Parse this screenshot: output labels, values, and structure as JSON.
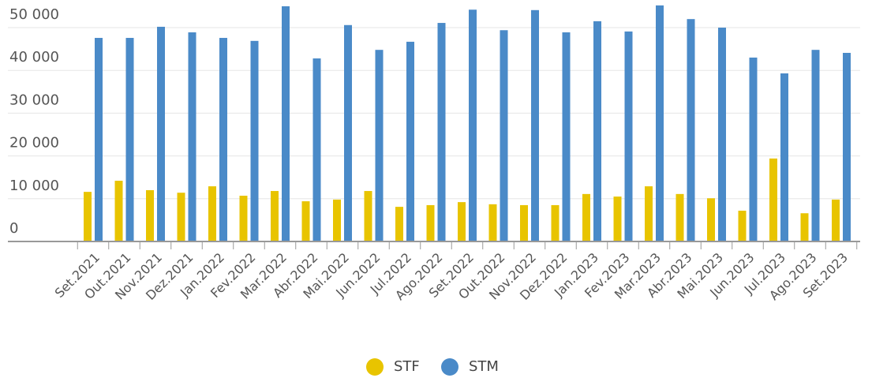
{
  "chart_data": {
    "type": "bar",
    "categories": [
      "Set.2021",
      "Out.2021",
      "Nov.2021",
      "Dez.2021",
      "Jan.2022",
      "Fev.2022",
      "Mar.2022",
      "Abr.2022",
      "Mai.2022",
      "Jun.2022",
      "Jul.2022",
      "Ago.2022",
      "Set.2022",
      "Out.2022",
      "Nov.2022",
      "Dez.2022",
      "Jan.2023",
      "Fev.2023",
      "Mar.2023",
      "Abr.2023",
      "Mai.2023",
      "Jun.2023",
      "Jul.2023",
      "Ago.2023",
      "Set.2023"
    ],
    "series": [
      {
        "name": "STF",
        "color": "#e8c400",
        "values": [
          11600,
          14200,
          12000,
          11400,
          12900,
          10700,
          11800,
          9400,
          9800,
          11800,
          8100,
          8500,
          9200,
          8700,
          8500,
          8500,
          11100,
          10500,
          12900,
          11100,
          10100,
          7200,
          19400,
          6600,
          9800
        ]
      },
      {
        "name": "STM",
        "color": "#4a8ac8",
        "values": [
          47600,
          47600,
          50200,
          48900,
          47600,
          46900,
          55000,
          42800,
          50600,
          44800,
          46700,
          51100,
          54200,
          49400,
          54100,
          48900,
          51500,
          49100,
          55200,
          52000,
          50000,
          43000,
          39300,
          44800,
          44100
        ]
      }
    ],
    "ylim": [
      0,
      56000
    ],
    "yticks": [
      0,
      {
        "value": 10000,
        "label": "10 000"
      },
      {
        "value": 20000,
        "label": "20 000"
      },
      {
        "value": 30000,
        "label": "30 000"
      },
      {
        "value": 40000,
        "label": "40 000"
      },
      {
        "value": 50000,
        "label": "50 000"
      }
    ],
    "grid": true
  }
}
